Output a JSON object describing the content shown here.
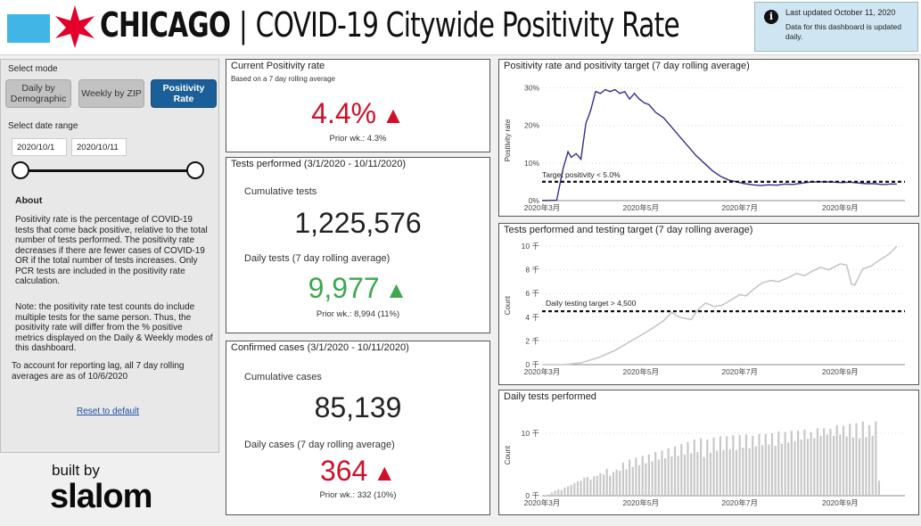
{
  "header": {
    "city": "CHICAGO",
    "separator": "|",
    "title": "COVID-19 Citywide Positivity Rate",
    "updated_line1": "Last updated October 11, 2020",
    "updated_line2": "Data for this dashboard is updated daily.",
    "colors": {
      "flag_blue": "#41b6e6",
      "star_red": "#e4002b"
    }
  },
  "sidebar": {
    "select_mode_label": "Select mode",
    "modes": [
      {
        "label": "Daily by Demographic",
        "active": false
      },
      {
        "label": "Weekly by ZIP",
        "active": false
      },
      {
        "label": "Positivity Rate",
        "active": true
      }
    ],
    "select_date_label": "Select date range",
    "date_start": "2020/10/1",
    "date_end": "2020/10/11",
    "about_heading": "About",
    "about_p1": "Positivity rate is the percentage of COVID-19 tests that come back positive, relative to the total number of tests performed.  The positivity rate decreases if there are fewer cases of COVID-19 OR if the total number of tests increases. Only PCR tests are included in the positivity rate calculation.",
    "about_p2": "Note: the positivity rate test counts do include multiple tests for the same person.  Thus, the positivity rate will differ from the % positive metrics displayed on the Daily & Weekly modes of this dashboard.",
    "about_p3": "To account for reporting lag, all 7 day rolling averages are as of 10/6/2020",
    "reset_label": "Reset to default",
    "built_by": "built by",
    "brand": "slalom"
  },
  "kpis": {
    "positivity": {
      "title": "Current Positivity rate",
      "subtitle": "Based on a 7 day rolling average",
      "value": "4.4%",
      "trend": "▲",
      "prior": "Prior wk.: 4.3%"
    },
    "tests": {
      "title": "Tests performed (3/1/2020 - 10/11/2020)",
      "cumulative_label": "Cumulative tests",
      "cumulative_value": "1,225,576",
      "daily_label": "Daily tests (7 day rolling average)",
      "daily_value": "9,977",
      "trend": "▲",
      "prior": "Prior wk.: 8,994 (11%)"
    },
    "cases": {
      "title": "Confirmed cases (3/1/2020 - 10/11/2020)",
      "cumulative_label": "Cumulative cases",
      "cumulative_value": "85,139",
      "daily_label": "Daily cases (7 day rolling average)",
      "daily_value": "364",
      "trend": "▲",
      "prior": "Prior wk.: 332 (10%)"
    }
  },
  "charts": {
    "positivity_chart": {
      "title": "Positivity rate and positivity target (7 day rolling average)",
      "ylabel": "Positivity rate",
      "target_label": "Target positivity < 5.0%"
    },
    "tests_chart": {
      "title": "Tests performed and testing target (7 day rolling average)",
      "ylabel": "Count",
      "target_label": "Daily testing target > 4,500"
    },
    "daily_chart": {
      "title": "Daily tests performed",
      "ylabel": "Count"
    }
  },
  "chart_data": [
    {
      "type": "line",
      "title": "Positivity rate and positivity target (7 day rolling average)",
      "ylabel": "Positivity rate",
      "x": [
        "2020-03-01",
        "2020-03-10",
        "2020-03-14",
        "2020-03-17",
        "2020-03-19",
        "2020-03-22",
        "2020-03-25",
        "2020-03-28",
        "2020-03-31",
        "2020-04-03",
        "2020-04-06",
        "2020-04-09",
        "2020-04-12",
        "2020-04-15",
        "2020-04-18",
        "2020-04-21",
        "2020-04-24",
        "2020-04-27",
        "2020-04-30",
        "2020-05-03",
        "2020-05-06",
        "2020-05-10",
        "2020-05-15",
        "2020-05-20",
        "2020-05-25",
        "2020-05-30",
        "2020-06-04",
        "2020-06-09",
        "2020-06-14",
        "2020-06-19",
        "2020-06-24",
        "2020-06-29",
        "2020-07-04",
        "2020-07-09",
        "2020-07-14",
        "2020-07-19",
        "2020-07-24",
        "2020-07-29",
        "2020-08-03",
        "2020-08-08",
        "2020-08-13",
        "2020-08-18",
        "2020-08-23",
        "2020-08-28",
        "2020-09-02",
        "2020-09-07",
        "2020-09-12",
        "2020-09-17",
        "2020-09-22",
        "2020-09-27",
        "2020-10-02",
        "2020-10-06"
      ],
      "series": [
        {
          "values": [
            0.0,
            0.1,
            8.5,
            13.0,
            11.5,
            12.5,
            11.0,
            20.5,
            24.0,
            29.0,
            28.5,
            29.5,
            29.0,
            29.5,
            28.5,
            29.0,
            27.0,
            28.5,
            27.0,
            26.0,
            25.5,
            23.5,
            22.0,
            19.5,
            17.0,
            14.5,
            12.0,
            10.0,
            8.0,
            6.5,
            5.5,
            5.0,
            4.5,
            4.2,
            4.0,
            4.2,
            4.1,
            4.4,
            4.3,
            4.6,
            4.9,
            5.0,
            5.0,
            4.9,
            4.8,
            4.9,
            4.7,
            4.5,
            4.5,
            4.3,
            4.4,
            4.4
          ]
        },
        {
          "values": [
            5.0,
            5.0,
            5.0,
            5.0,
            5.0,
            5.0,
            5.0,
            5.0,
            5.0,
            5.0,
            5.0,
            5.0,
            5.0,
            5.0,
            5.0,
            5.0,
            5.0,
            5.0,
            5.0,
            5.0,
            5.0,
            5.0,
            5.0,
            5.0,
            5.0,
            5.0,
            5.0,
            5.0,
            5.0,
            5.0,
            5.0,
            5.0,
            5.0,
            5.0,
            5.0,
            5.0,
            5.0,
            5.0,
            5.0,
            5.0,
            5.0,
            5.0,
            5.0,
            5.0,
            5.0,
            5.0,
            5.0,
            5.0,
            5.0,
            5.0,
            5.0,
            5.0
          ]
        }
      ],
      "yticks": [
        "0%",
        "10%",
        "20%",
        "30%"
      ],
      "ylim": [
        0,
        32
      ],
      "xticks": [
        "2020年3月",
        "2020年5月",
        "2020年7月",
        "2020年9月"
      ],
      "target_value": 5.0
    },
    {
      "type": "line",
      "title": "Tests performed and testing target (7 day rolling average)",
      "ylabel": "Count",
      "x": [
        "2020-03-01",
        "2020-03-15",
        "2020-03-25",
        "2020-04-05",
        "2020-04-15",
        "2020-04-25",
        "2020-05-05",
        "2020-05-15",
        "2020-05-20",
        "2020-05-25",
        "2020-06-01",
        "2020-06-05",
        "2020-06-10",
        "2020-06-15",
        "2020-06-20",
        "2020-06-25",
        "2020-07-01",
        "2020-07-05",
        "2020-07-10",
        "2020-07-15",
        "2020-07-20",
        "2020-07-25",
        "2020-08-01",
        "2020-08-05",
        "2020-08-10",
        "2020-08-15",
        "2020-08-20",
        "2020-08-25",
        "2020-09-01",
        "2020-09-05",
        "2020-09-08",
        "2020-09-10",
        "2020-09-15",
        "2020-09-20",
        "2020-09-25",
        "2020-10-01",
        "2020-10-06"
      ],
      "series": [
        {
          "values": [
            0,
            0,
            150,
            600,
            1200,
            2000,
            2800,
            3700,
            4400,
            4000,
            3800,
            4600,
            5200,
            4900,
            5000,
            5400,
            5900,
            5800,
            6400,
            6900,
            7100,
            7000,
            7400,
            7700,
            7500,
            7900,
            8200,
            8000,
            8500,
            8400,
            6800,
            6700,
            8100,
            8300,
            8800,
            9300,
            9977
          ]
        },
        {
          "values": [
            4500,
            4500,
            4500,
            4500,
            4500,
            4500,
            4500,
            4500,
            4500,
            4500,
            4500,
            4500,
            4500,
            4500,
            4500,
            4500,
            4500,
            4500,
            4500,
            4500,
            4500,
            4500,
            4500,
            4500,
            4500,
            4500,
            4500,
            4500,
            4500,
            4500,
            4500,
            4500,
            4500,
            4500,
            4500,
            4500,
            4500
          ]
        }
      ],
      "yticks": [
        "0 千",
        "2 千",
        "4 千",
        "6 千",
        "8 千",
        "10 千"
      ],
      "ylim": [
        0,
        10000
      ],
      "xticks": [
        "2020年3月",
        "2020年5月",
        "2020年7月",
        "2020年9月"
      ],
      "target_value": 4500
    },
    {
      "type": "bar",
      "title": "Daily tests performed",
      "ylabel": "Count",
      "x_start": "2020-03-01",
      "x_end": "2020-10-06",
      "x_step_days": 2,
      "values": [
        0,
        50,
        200,
        500,
        800,
        1000,
        900,
        1300,
        1500,
        1700,
        2000,
        2300,
        2400,
        2900,
        3000,
        2600,
        3100,
        3200,
        3600,
        3400,
        4300,
        3200,
        3800,
        4200,
        4000,
        5300,
        4200,
        5800,
        4600,
        6100,
        4900,
        6400,
        5200,
        6600,
        5500,
        7000,
        5800,
        7200,
        6000,
        7600,
        6300,
        7900,
        6400,
        8300,
        6600,
        8600,
        6800,
        9000,
        7000,
        9200,
        6200,
        9000,
        6900,
        9300,
        7200,
        9500,
        7300,
        9500,
        7400,
        9700,
        7300,
        9700,
        7700,
        9800,
        7600,
        9600,
        7900,
        9900,
        8100,
        9900,
        8200,
        10000,
        8000,
        10300,
        8300,
        10200,
        8500,
        10400,
        8700,
        10400,
        9000,
        10600,
        9100,
        10200,
        9200,
        10800,
        9600,
        10800,
        9800,
        10700,
        9600,
        11300,
        9800,
        11200,
        9500,
        11500,
        9300,
        11600,
        9200,
        11900,
        9400,
        11300,
        9600,
        11900,
        2400
      ],
      "yticks": [
        "0 千",
        "10 千"
      ],
      "ylim": [
        0,
        13000
      ],
      "xticks": [
        "2020年3月",
        "2020年5月",
        "2020年7月",
        "2020年9月"
      ]
    }
  ]
}
